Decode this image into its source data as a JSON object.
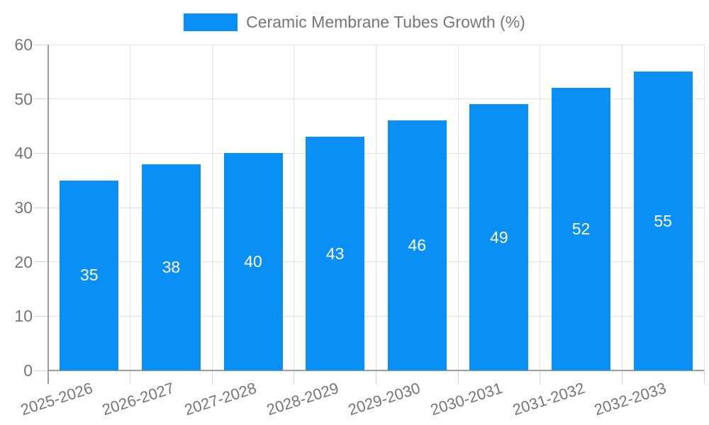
{
  "legend": {
    "label": "Ceramic Membrane Tubes Growth (%)",
    "swatch_color": "#0a90f5",
    "position": "top-center"
  },
  "chart_data": {
    "type": "bar",
    "title": "Ceramic Membrane Tubes Growth (%)",
    "categories": [
      "2025-2026",
      "2026-2027",
      "2027-2028",
      "2028-2029",
      "2029-2030",
      "2030-2031",
      "2031-2032",
      "2032-2033"
    ],
    "values": [
      35,
      38,
      40,
      43,
      46,
      49,
      52,
      55
    ],
    "value_labels": [
      "35",
      "38",
      "40",
      "43",
      "46",
      "49",
      "52",
      "55"
    ],
    "xlabel": "",
    "ylabel": "",
    "ylim": [
      0,
      60
    ],
    "yticks": [
      0,
      10,
      20,
      30,
      40,
      50,
      60
    ],
    "grid": "on",
    "legend_position": "top-center",
    "bar_color": "#0a90f5",
    "value_label_color": "#ffffff",
    "axis_text_color": "#757575",
    "gridline_color": "#e2e2e2",
    "axis_line_color": "#9e9e9e",
    "x_label_rotation_deg": -18
  }
}
